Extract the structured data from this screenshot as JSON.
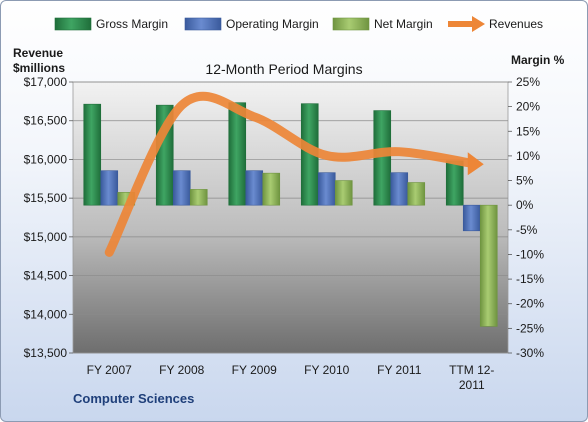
{
  "chart_data": {
    "type": "bar",
    "title": "12-Month Period Margins",
    "left_axis_title_line1": "Revenue",
    "left_axis_title_line2": "$millions",
    "right_axis_title": "Margin %",
    "footer": "Computer Sciences",
    "categories": [
      "FY 2007",
      "FY 2008",
      "FY 2009",
      "FY 2010",
      "FY 2011",
      "TTM 12-2011"
    ],
    "category_label_lines": [
      [
        "FY 2007"
      ],
      [
        "FY 2008"
      ],
      [
        "FY 2009"
      ],
      [
        "FY 2010"
      ],
      [
        "FY 2011"
      ],
      [
        "TTM 12-",
        "2011"
      ]
    ],
    "series": [
      {
        "name": "Gross Margin",
        "axis": "right",
        "kind": "bar",
        "color": "#2e8b4f",
        "values": [
          20.5,
          20.3,
          20.8,
          20.6,
          19.2,
          9.0
        ]
      },
      {
        "name": "Operating Margin",
        "axis": "right",
        "kind": "bar",
        "color": "#4f71b8",
        "values": [
          7.0,
          7.0,
          7.0,
          6.6,
          6.6,
          -5.2
        ]
      },
      {
        "name": "Net Margin",
        "axis": "right",
        "kind": "bar",
        "color": "#8fb358",
        "values": [
          2.6,
          3.2,
          6.5,
          5.0,
          4.6,
          -24.6
        ]
      },
      {
        "name": "Revenues",
        "axis": "left",
        "kind": "line",
        "color": "#ed8637",
        "values": [
          14800,
          16700,
          16550,
          16050,
          16100,
          15950
        ]
      }
    ],
    "left_axis": {
      "min": 13500,
      "max": 17000,
      "step": 500,
      "tick_labels": [
        "$13,500",
        "$14,000",
        "$14,500",
        "$15,000",
        "$15,500",
        "$16,000",
        "$16,500",
        "$17,000"
      ]
    },
    "right_axis": {
      "min": -30,
      "max": 25,
      "step": 5,
      "tick_labels": [
        "-30%",
        "-25%",
        "-20%",
        "-15%",
        "-10%",
        "-5%",
        "0%",
        "5%",
        "10%",
        "15%",
        "20%",
        "25%"
      ]
    },
    "grid": true,
    "legend_position": "top"
  }
}
